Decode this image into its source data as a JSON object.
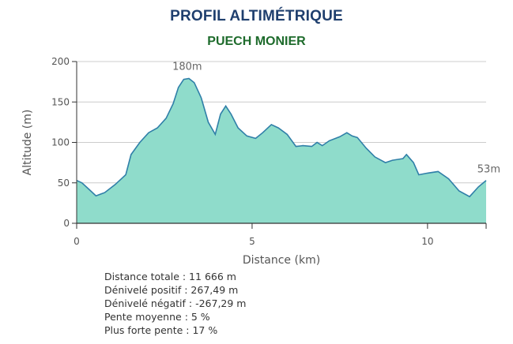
{
  "header": {
    "title": "PROFIL ALTIMÉTRIQUE",
    "subtitle": "PUECH MONIER"
  },
  "stats": [
    "Distance totale : 11 666 m",
    "Dénivelé positif : 267,49 m",
    "Dénivelé négatif : -267,29 m",
    "Pente moyenne : 5 %",
    "Plus forte pente : 17 %"
  ],
  "colors": {
    "fill": "#8fdccb",
    "line": "#2f7fa8",
    "grid": "#cccccc",
    "axis": "#333333"
  },
  "chart_data": {
    "type": "area",
    "xlabel": "Distance (km)",
    "ylabel": "Altitude (m)",
    "xlim": [
      0,
      11.67
    ],
    "ylim": [
      0,
      200
    ],
    "xticks": [
      0,
      5,
      10
    ],
    "yticks": [
      0,
      50,
      100,
      150,
      200
    ],
    "grid": "horizontal",
    "x": [
      0,
      0.15,
      0.35,
      0.55,
      0.8,
      1.1,
      1.4,
      1.55,
      1.8,
      2.05,
      2.3,
      2.55,
      2.75,
      2.9,
      3.05,
      3.2,
      3.35,
      3.55,
      3.75,
      3.95,
      4.1,
      4.25,
      4.4,
      4.6,
      4.85,
      5.1,
      5.3,
      5.55,
      5.75,
      6.0,
      6.25,
      6.45,
      6.7,
      6.85,
      7.0,
      7.2,
      7.5,
      7.7,
      7.85,
      8.0,
      8.25,
      8.5,
      8.8,
      9.0,
      9.3,
      9.4,
      9.6,
      9.75,
      10.0,
      10.3,
      10.6,
      10.9,
      11.2,
      11.45,
      11.67
    ],
    "y": [
      53,
      50,
      42,
      34,
      38,
      48,
      60,
      85,
      100,
      112,
      118,
      130,
      148,
      168,
      178,
      179,
      174,
      155,
      125,
      110,
      135,
      145,
      135,
      118,
      108,
      105,
      112,
      122,
      118,
      110,
      95,
      96,
      95,
      100,
      96,
      102,
      107,
      112,
      108,
      106,
      93,
      82,
      75,
      78,
      80,
      85,
      75,
      60,
      62,
      64,
      55,
      40,
      33,
      45,
      53
    ],
    "annotations": [
      {
        "text": "180m",
        "x": 3.15,
        "y": 180
      },
      {
        "text": "53m",
        "x": 11.67,
        "y": 53
      }
    ]
  }
}
